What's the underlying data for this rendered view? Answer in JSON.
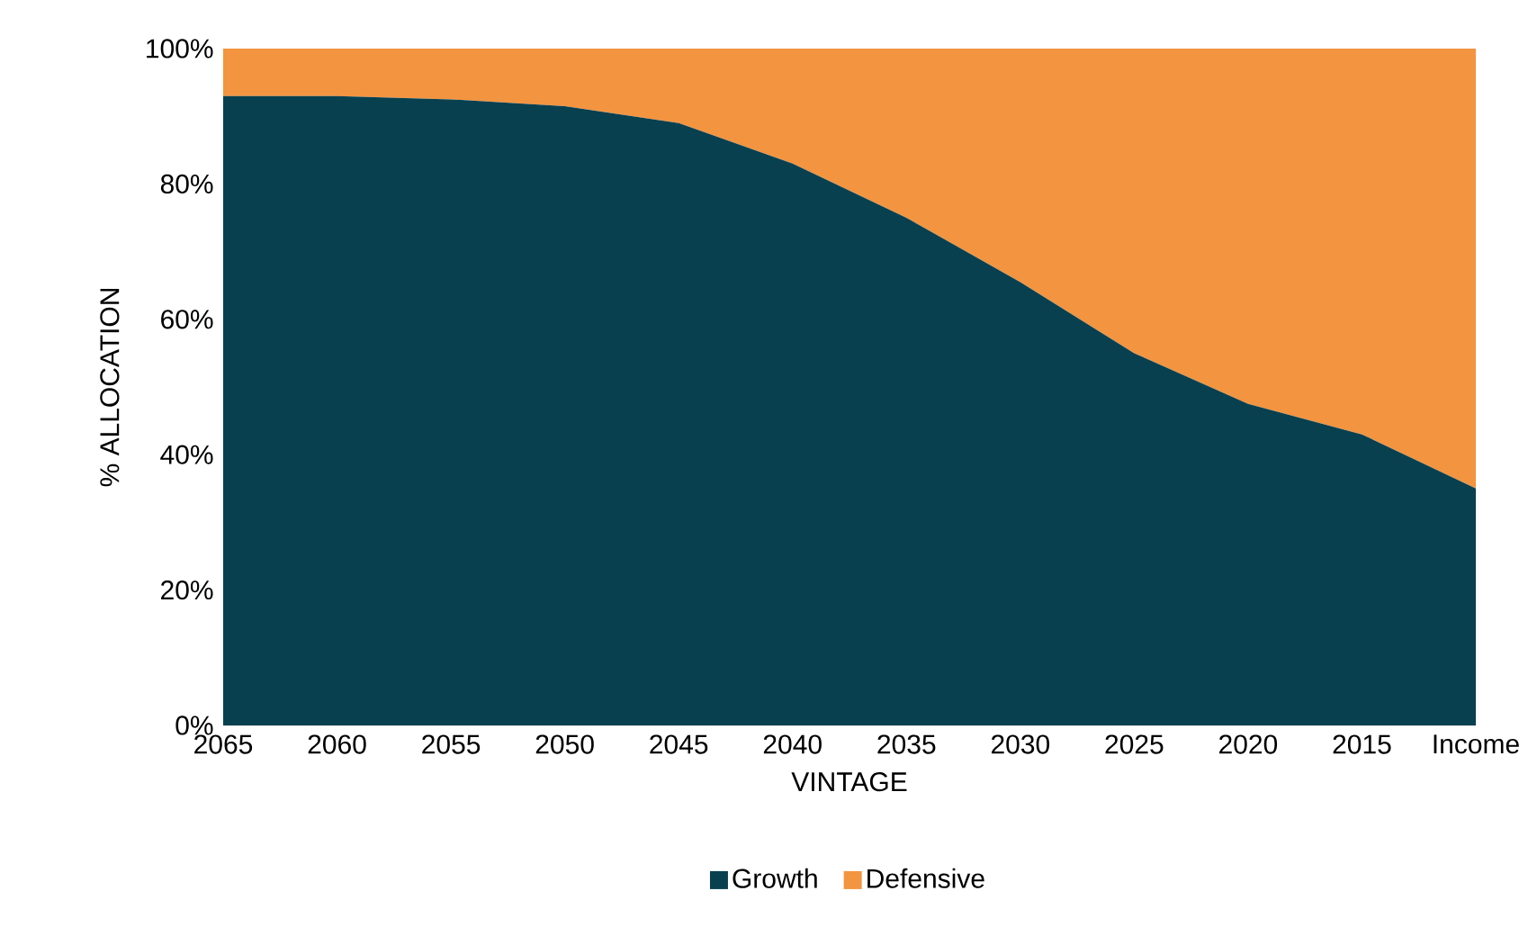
{
  "chart_data": {
    "type": "area",
    "stacked": true,
    "xlabel": "VINTAGE",
    "ylabel": "% ALLOCATION",
    "categories": [
      "2065",
      "2060",
      "2055",
      "2050",
      "2045",
      "2040",
      "2035",
      "2030",
      "2025",
      "2020",
      "2015",
      "Income"
    ],
    "series": [
      {
        "name": "Growth",
        "color": "#08404f",
        "values": [
          93,
          93,
          92.5,
          91.5,
          89,
          83,
          75,
          65.5,
          55,
          47.5,
          43,
          35
        ]
      },
      {
        "name": "Defensive",
        "color": "#f39440",
        "values": [
          7,
          7,
          7.5,
          8.5,
          11,
          17,
          25,
          34.5,
          45,
          52.5,
          57,
          65
        ]
      }
    ],
    "ylim": [
      0,
      100
    ],
    "yticks": [
      {
        "value": 0,
        "label": "0%"
      },
      {
        "value": 20,
        "label": "20%"
      },
      {
        "value": 40,
        "label": "40%"
      },
      {
        "value": 60,
        "label": "60%"
      },
      {
        "value": 80,
        "label": "80%"
      },
      {
        "value": 100,
        "label": "100%"
      }
    ],
    "legend": "bottom"
  }
}
